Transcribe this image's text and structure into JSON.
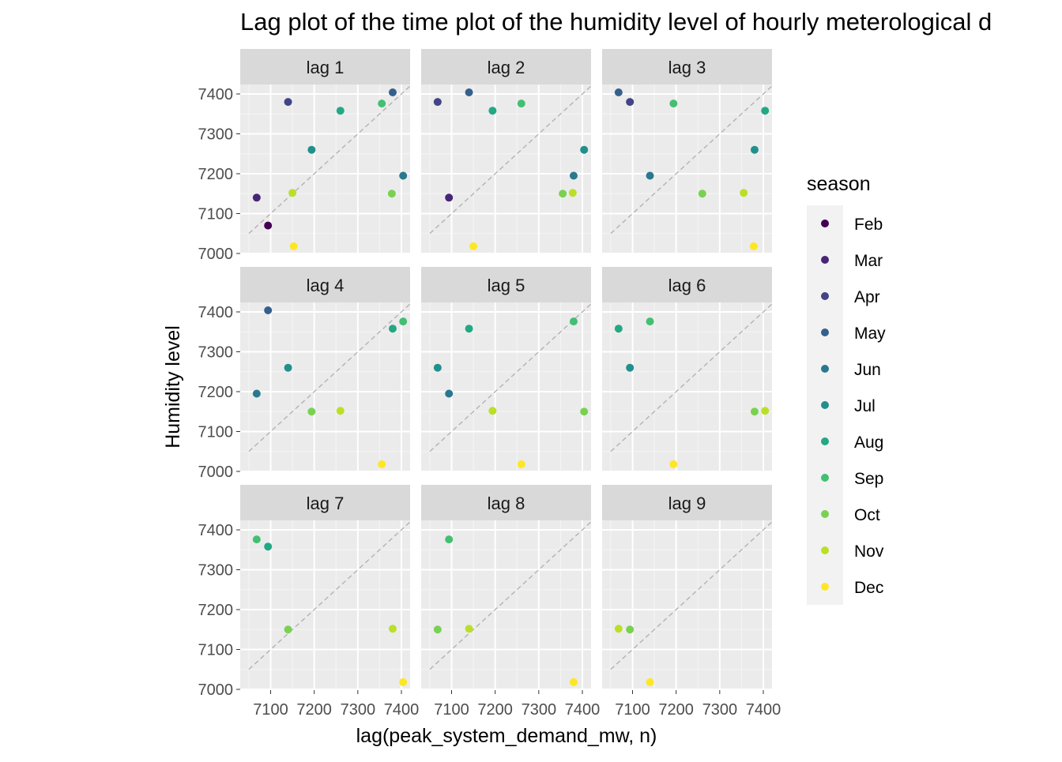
{
  "chart_data": {
    "type": "scatter",
    "title": "Lag plot of the time plot of the humidity level of hourly meterological d",
    "xlabel": "lag(peak_system_demand_mw, n)",
    "ylabel": "Humidity level",
    "xlim": [
      7050,
      7420
    ],
    "ylim": [
      7000,
      7420
    ],
    "xticks": [
      7100,
      7200,
      7300,
      7400
    ],
    "yticks": [
      7000,
      7100,
      7200,
      7300,
      7400
    ],
    "grid": true,
    "reference_line": "y = x (dashed grey)",
    "legend": {
      "title": "season",
      "position": "right",
      "entries": [
        {
          "label": "Feb",
          "color": "#440154"
        },
        {
          "label": "Mar",
          "color": "#482576"
        },
        {
          "label": "Apr",
          "color": "#414487"
        },
        {
          "label": "May",
          "color": "#35608D"
        },
        {
          "label": "Jun",
          "color": "#2A788E"
        },
        {
          "label": "Jul",
          "color": "#21908C"
        },
        {
          "label": "Aug",
          "color": "#22A884"
        },
        {
          "label": "Sep",
          "color": "#43BF71"
        },
        {
          "label": "Oct",
          "color": "#7AD151"
        },
        {
          "label": "Nov",
          "color": "#BBDF27"
        },
        {
          "label": "Dec",
          "color": "#FDE725"
        }
      ]
    },
    "panels": [
      {
        "label": "lag 1",
        "points": [
          {
            "x": 7068,
            "y": 7140,
            "season": "Mar"
          },
          {
            "x": 7094,
            "y": 7070,
            "season": "Feb"
          },
          {
            "x": 7140,
            "y": 7380,
            "season": "Apr"
          },
          {
            "x": 7150,
            "y": 7152,
            "season": "Nov"
          },
          {
            "x": 7153,
            "y": 7018,
            "season": "Dec"
          },
          {
            "x": 7194,
            "y": 7260,
            "season": "Jul"
          },
          {
            "x": 7260,
            "y": 7358,
            "season": "Aug"
          },
          {
            "x": 7355,
            "y": 7376,
            "season": "Sep"
          },
          {
            "x": 7378,
            "y": 7150,
            "season": "Oct"
          },
          {
            "x": 7380,
            "y": 7404,
            "season": "May"
          },
          {
            "x": 7404,
            "y": 7195,
            "season": "Jun"
          }
        ]
      },
      {
        "label": "lag 2",
        "points": [
          {
            "x": 7068,
            "y": 7380,
            "season": "Apr"
          },
          {
            "x": 7094,
            "y": 7140,
            "season": "Mar"
          },
          {
            "x": 7140,
            "y": 7404,
            "season": "May"
          },
          {
            "x": 7150,
            "y": 7018,
            "season": "Dec"
          },
          {
            "x": 7194,
            "y": 7358,
            "season": "Aug"
          },
          {
            "x": 7260,
            "y": 7376,
            "season": "Sep"
          },
          {
            "x": 7355,
            "y": 7150,
            "season": "Oct"
          },
          {
            "x": 7378,
            "y": 7152,
            "season": "Nov"
          },
          {
            "x": 7380,
            "y": 7195,
            "season": "Jun"
          },
          {
            "x": 7404,
            "y": 7260,
            "season": "Jul"
          }
        ]
      },
      {
        "label": "lag 3",
        "points": [
          {
            "x": 7068,
            "y": 7404,
            "season": "May"
          },
          {
            "x": 7094,
            "y": 7380,
            "season": "Apr"
          },
          {
            "x": 7140,
            "y": 7195,
            "season": "Jun"
          },
          {
            "x": 7194,
            "y": 7376,
            "season": "Sep"
          },
          {
            "x": 7260,
            "y": 7150,
            "season": "Oct"
          },
          {
            "x": 7355,
            "y": 7152,
            "season": "Nov"
          },
          {
            "x": 7378,
            "y": 7018,
            "season": "Dec"
          },
          {
            "x": 7380,
            "y": 7260,
            "season": "Jul"
          },
          {
            "x": 7404,
            "y": 7358,
            "season": "Aug"
          }
        ]
      },
      {
        "label": "lag 4",
        "points": [
          {
            "x": 7068,
            "y": 7195,
            "season": "Jun"
          },
          {
            "x": 7094,
            "y": 7404,
            "season": "May"
          },
          {
            "x": 7140,
            "y": 7260,
            "season": "Jul"
          },
          {
            "x": 7194,
            "y": 7150,
            "season": "Oct"
          },
          {
            "x": 7260,
            "y": 7152,
            "season": "Nov"
          },
          {
            "x": 7355,
            "y": 7018,
            "season": "Dec"
          },
          {
            "x": 7380,
            "y": 7358,
            "season": "Aug"
          },
          {
            "x": 7404,
            "y": 7376,
            "season": "Sep"
          }
        ]
      },
      {
        "label": "lag 5",
        "points": [
          {
            "x": 7068,
            "y": 7260,
            "season": "Jul"
          },
          {
            "x": 7094,
            "y": 7195,
            "season": "Jun"
          },
          {
            "x": 7140,
            "y": 7358,
            "season": "Aug"
          },
          {
            "x": 7194,
            "y": 7152,
            "season": "Nov"
          },
          {
            "x": 7260,
            "y": 7018,
            "season": "Dec"
          },
          {
            "x": 7380,
            "y": 7376,
            "season": "Sep"
          },
          {
            "x": 7404,
            "y": 7150,
            "season": "Oct"
          }
        ]
      },
      {
        "label": "lag 6",
        "points": [
          {
            "x": 7068,
            "y": 7358,
            "season": "Aug"
          },
          {
            "x": 7094,
            "y": 7260,
            "season": "Jul"
          },
          {
            "x": 7140,
            "y": 7376,
            "season": "Sep"
          },
          {
            "x": 7194,
            "y": 7018,
            "season": "Dec"
          },
          {
            "x": 7380,
            "y": 7150,
            "season": "Oct"
          },
          {
            "x": 7404,
            "y": 7152,
            "season": "Nov"
          }
        ]
      },
      {
        "label": "lag 7",
        "points": [
          {
            "x": 7068,
            "y": 7376,
            "season": "Sep"
          },
          {
            "x": 7094,
            "y": 7358,
            "season": "Aug"
          },
          {
            "x": 7140,
            "y": 7150,
            "season": "Oct"
          },
          {
            "x": 7380,
            "y": 7152,
            "season": "Nov"
          },
          {
            "x": 7404,
            "y": 7018,
            "season": "Dec"
          }
        ]
      },
      {
        "label": "lag 8",
        "points": [
          {
            "x": 7068,
            "y": 7150,
            "season": "Oct"
          },
          {
            "x": 7094,
            "y": 7376,
            "season": "Sep"
          },
          {
            "x": 7140,
            "y": 7152,
            "season": "Nov"
          },
          {
            "x": 7380,
            "y": 7018,
            "season": "Dec"
          }
        ]
      },
      {
        "label": "lag 9",
        "points": [
          {
            "x": 7068,
            "y": 7152,
            "season": "Nov"
          },
          {
            "x": 7094,
            "y": 7150,
            "season": "Oct"
          },
          {
            "x": 7140,
            "y": 7018,
            "season": "Dec"
          }
        ]
      }
    ]
  }
}
